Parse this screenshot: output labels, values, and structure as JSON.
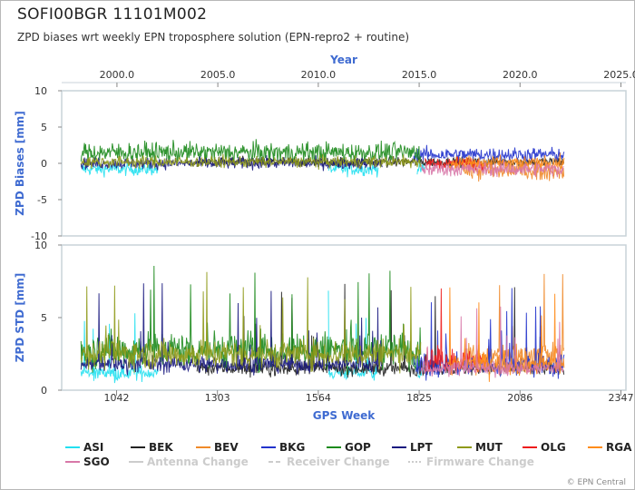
{
  "title": "SOFI00BGR 11101M002",
  "subtitle": "ZPD biases wrt weekly EPN troposphere solution (EPN-repro2 + routine)",
  "credit": "© EPN Central",
  "chart_data": {
    "type": "line",
    "year_axis": {
      "label": "Year",
      "ticks": [
        "2000.0",
        "2005.0",
        "2010.0",
        "2015.0",
        "2020.0",
        "2025.0"
      ],
      "tick_weeks": [
        1043,
        1304,
        1564,
        1825,
        2086,
        2347
      ]
    },
    "gps_week_axis": {
      "label": "GPS Week",
      "ticks": [
        "1042",
        "1303",
        "1564",
        "1825",
        "2086",
        "2347"
      ],
      "range": [
        900,
        2360
      ]
    },
    "panels": [
      {
        "id": "bias",
        "ylabel": "ZPD Biases [mm]",
        "ylim": [
          -10,
          10
        ],
        "yticks": [
          "10",
          "5",
          "0",
          "-5",
          "-10"
        ],
        "ytick_values": [
          10,
          5,
          0,
          -5,
          -10
        ]
      },
      {
        "id": "std",
        "ylabel": "ZPD STD [mm]",
        "ylim": [
          0,
          10
        ],
        "yticks": [
          "10",
          "5",
          "0"
        ],
        "ytick_values": [
          10,
          5,
          0
        ]
      }
    ],
    "series": [
      {
        "name": "ASI",
        "color": "#22e0f0",
        "weeks": [
          950,
          1150
        ],
        "bias_mean": -0.8,
        "bias_noise": 0.9,
        "std_mean": 1.2,
        "std_noise": 0.5,
        "weeks2": [
          1590,
          1720
        ],
        "weeks3": [
          1820,
          1840
        ]
      },
      {
        "name": "BEK",
        "color": "#222222",
        "weeks": [
          1250,
          2200
        ],
        "bias_mean": 0.2,
        "bias_noise": 0.7,
        "std_mean": 1.5,
        "std_noise": 0.5
      },
      {
        "name": "BEV",
        "color": "#f08a2a",
        "weeks": [
          1940,
          2200
        ],
        "bias_mean": -1.0,
        "bias_noise": 1.3,
        "std_mean": 2.4,
        "std_noise": 0.9
      },
      {
        "name": "BKG",
        "color": "#2233cc",
        "weeks": [
          1810,
          2200
        ],
        "bias_mean": 1.2,
        "bias_noise": 1.0,
        "std_mean": 1.7,
        "std_noise": 0.8
      },
      {
        "name": "GOP",
        "color": "#1c8a1c",
        "weeks": [
          950,
          1830
        ],
        "bias_mean": 1.5,
        "bias_noise": 1.4,
        "std_mean": 2.8,
        "std_noise": 1.3
      },
      {
        "name": "LPT",
        "color": "#1a1a80",
        "weeks": [
          950,
          1730
        ],
        "bias_mean": 0.0,
        "bias_noise": 0.8,
        "std_mean": 1.8,
        "std_noise": 0.6
      },
      {
        "name": "MUT",
        "color": "#8f9a1a",
        "weeks": [
          950,
          1830
        ],
        "bias_mean": 0.2,
        "bias_noise": 0.8,
        "std_mean": 2.5,
        "std_noise": 1.0
      },
      {
        "name": "OLG",
        "color": "#ee1c1c",
        "weeks": [
          1840,
          2000
        ],
        "bias_mean": 0.0,
        "bias_noise": 0.9,
        "std_mean": 2.0,
        "std_noise": 0.8
      },
      {
        "name": "RGA",
        "color": "#ff8c1a",
        "weeks": [
          1900,
          2200
        ],
        "bias_mean": 0.0,
        "bias_noise": 1.0,
        "std_mean": 1.8,
        "std_noise": 0.8
      },
      {
        "name": "SGO",
        "color": "#d878a8",
        "weeks": [
          1830,
          2200
        ],
        "bias_mean": -0.8,
        "bias_noise": 1.0,
        "std_mean": 1.5,
        "std_noise": 0.5
      }
    ],
    "legend": {
      "placement": "bottom",
      "entries": [
        {
          "name": "ASI",
          "color": "#22e0f0",
          "style": "solid"
        },
        {
          "name": "BEK",
          "color": "#222222",
          "style": "solid"
        },
        {
          "name": "BEV",
          "color": "#f08a2a",
          "style": "solid"
        },
        {
          "name": "BKG",
          "color": "#2233cc",
          "style": "solid"
        },
        {
          "name": "GOP",
          "color": "#1c8a1c",
          "style": "solid"
        },
        {
          "name": "LPT",
          "color": "#1a1a80",
          "style": "solid"
        },
        {
          "name": "MUT",
          "color": "#8f9a1a",
          "style": "solid"
        },
        {
          "name": "OLG",
          "color": "#ee1c1c",
          "style": "solid"
        },
        {
          "name": "RGA",
          "color": "#ff8c1a",
          "style": "solid"
        },
        {
          "name": "SGO",
          "color": "#d878a8",
          "style": "solid"
        },
        {
          "name": "Antenna Change",
          "color": "#cccccc",
          "style": "solid"
        },
        {
          "name": "Receiver Change",
          "color": "#cccccc",
          "style": "dashed"
        },
        {
          "name": "Firmware Change",
          "color": "#cccccc",
          "style": "dotted"
        }
      ]
    },
    "grid": false
  }
}
